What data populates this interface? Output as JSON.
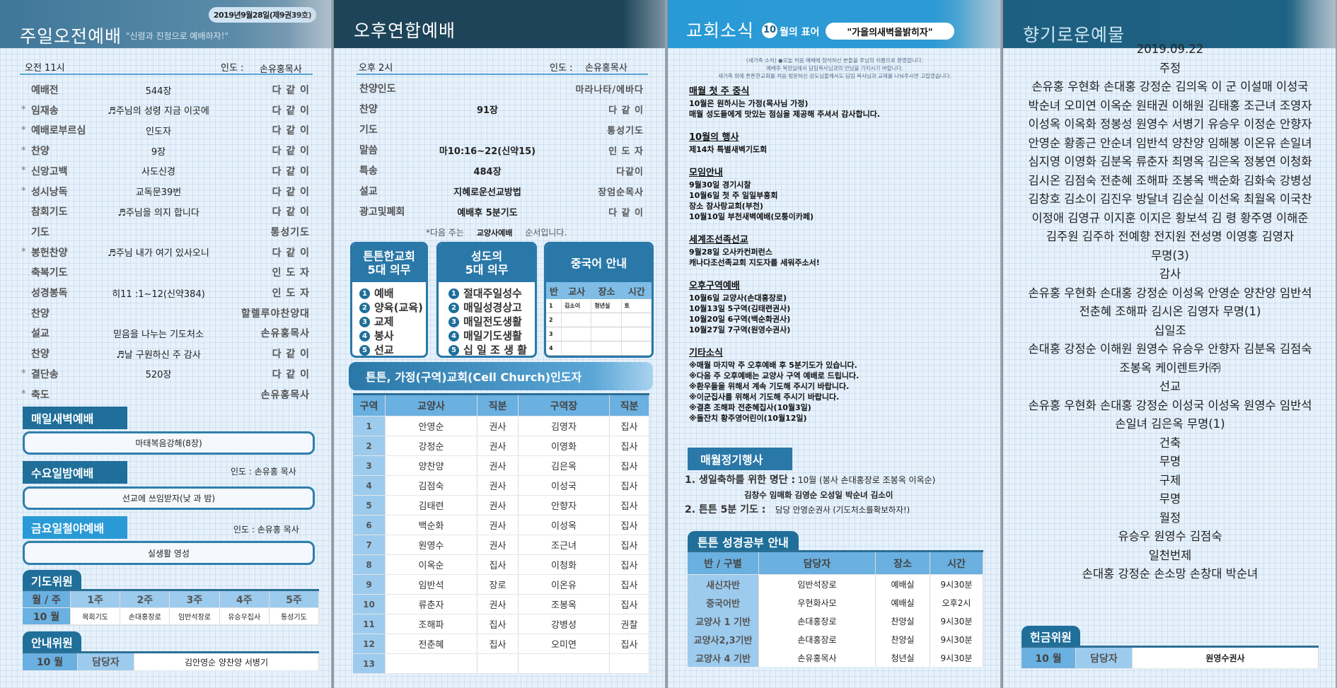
{
  "morning": {
    "date_badge": "2019년9월28일(제9권39호)",
    "title": "주일오전예배",
    "motto": "\"신령과 진정으로 예배하자!\"",
    "time": "오전 11시",
    "leader_label": "인도 :",
    "leader": "손유홍목사",
    "order": [
      {
        "mark": "",
        "label": "예배전",
        "content": "544장",
        "by": "다 같 이"
      },
      {
        "mark": "*",
        "label": "임재송",
        "content": "♬주님의 성령 지금 이곳에",
        "by": "다 같 이"
      },
      {
        "mark": "*",
        "label": "예배로부르심",
        "content": "인도자",
        "by": "다 같 이"
      },
      {
        "mark": "*",
        "label": "찬양",
        "content": "9장",
        "by": "다 같 이"
      },
      {
        "mark": "*",
        "label": "신앙고백",
        "content": "사도신경",
        "by": "다 같 이"
      },
      {
        "mark": "*",
        "label": "성시낭독",
        "content": "교독문39번",
        "by": "다 같 이"
      },
      {
        "mark": "",
        "label": "참회기도",
        "content": "♬주님을 의지 합니다",
        "by": "다 같 이"
      },
      {
        "mark": "",
        "label": "기도",
        "content": "",
        "by": "통성기도"
      },
      {
        "mark": "*",
        "label": "봉헌찬양",
        "content": "♬주님 내가 여기 있사오니",
        "by": "다 같 이"
      },
      {
        "mark": "",
        "label": "축복기도",
        "content": "",
        "by": "인 도 자"
      },
      {
        "mark": "",
        "label": "성경봉독",
        "content": "히11 :1~12(신약384)",
        "by": "인 도 자"
      },
      {
        "mark": "",
        "label": "찬양",
        "content": "",
        "by": "할렐루야찬양대"
      },
      {
        "mark": "",
        "label": "설교",
        "content": "믿음을 나누는 기도처소",
        "by": "손유홍목사"
      },
      {
        "mark": "",
        "label": "찬양",
        "content": "♬날 구원하신 주 감사",
        "by": "다 같 이"
      },
      {
        "mark": "*",
        "label": "결단송",
        "content": "520장",
        "by": "다 같 이"
      },
      {
        "mark": "*",
        "label": "축도",
        "content": "",
        "by": "손유홍목사"
      }
    ],
    "dawn": {
      "tab": "매일새벽예배",
      "content": "마태복음강해(8장)"
    },
    "wednesday": {
      "tab": "수요일밤예배",
      "leader": "인도 : 손유홍 목사",
      "content": "선교에 쓰임받자(낮 과 밤)"
    },
    "friday": {
      "tab": "금요일철야예배",
      "leader": "인도 : 손유홍 목사",
      "content": "실생활 영성"
    },
    "prayer": {
      "tab": "기도위원",
      "header": [
        "월 / 주",
        "1주",
        "2주",
        "3주",
        "4주",
        "5주"
      ],
      "row": [
        "10 월",
        "목회기도",
        "손대홍장로",
        "임반석장로",
        "유승우집사",
        "통성기도"
      ]
    },
    "usher": {
      "tab": "안내위원",
      "month": "10 월",
      "label": "담당자",
      "names": "김안영순 양찬양 서병기"
    }
  },
  "afternoon": {
    "title": "오후연합예배",
    "time": "오후 2시",
    "leader_label": "인도 :",
    "leader": "손유홍목사",
    "order": [
      {
        "label": "찬양인도",
        "content": "",
        "by": "마라나타/에바다"
      },
      {
        "label": "찬양",
        "content": "91장",
        "by": "다 같 이"
      },
      {
        "label": "기도",
        "content": "",
        "by": "통성기도"
      },
      {
        "label": "말씀",
        "content": "마10:16~22(신약15)",
        "by": "인 도 자"
      },
      {
        "label": "특송",
        "content": "484장",
        "by": "다같이"
      },
      {
        "label": "설교",
        "content": "지혜로운선교방법",
        "by": "장엄순목사"
      },
      {
        "label": "광고및폐회",
        "content": "예배후 5분기도",
        "by": "다 같 이"
      }
    ],
    "next_week": [
      "*다음 주는",
      "교양사예배",
      "순서입니다."
    ],
    "church_duties": {
      "title": [
        "튼튼한교회",
        "5대 의무"
      ],
      "items": [
        "예배",
        "양육(교육)",
        "교제",
        "봉사",
        "선교"
      ]
    },
    "saint_duties": {
      "title": [
        "성도의",
        "5대 의무"
      ],
      "items": [
        "절대주일성수",
        "매일성경상고",
        "매일전도생활",
        "매일기도생활",
        "십 일 조 생 활"
      ]
    },
    "chinese": {
      "title": "중국어 안내",
      "header": [
        "반",
        "교사",
        "장소",
        "시간"
      ],
      "rows": [
        [
          "1",
          "김소이",
          "청년실",
          "토"
        ],
        [
          "2",
          "",
          "",
          ""
        ],
        [
          "3",
          "",
          "",
          ""
        ],
        [
          "4",
          "",
          "",
          ""
        ]
      ]
    },
    "cell": {
      "title": "튼튼, 가정(구역)교회(Cell Church)인도자",
      "header": [
        "구역",
        "교양사",
        "직분",
        "구역장",
        "직분"
      ],
      "rows": [
        [
          "1",
          "안영순",
          "권사",
          "김영자",
          "집사"
        ],
        [
          "2",
          "강정순",
          "권사",
          "이영화",
          "집사"
        ],
        [
          "3",
          "양찬양",
          "권사",
          "김은옥",
          "집사"
        ],
        [
          "4",
          "김점숙",
          "권사",
          "이성국",
          "집사"
        ],
        [
          "5",
          "김태련",
          "권사",
          "안향자",
          "집사"
        ],
        [
          "6",
          "백순화",
          "권사",
          "이성옥",
          "집사"
        ],
        [
          "7",
          "원영수",
          "권사",
          "조근녀",
          "집사"
        ],
        [
          "8",
          "이옥순",
          "집사",
          "이청화",
          "집사"
        ],
        [
          "9",
          "임반석",
          "장로",
          "이온유",
          "집사"
        ],
        [
          "10",
          "류춘자",
          "권사",
          "조봉옥",
          "집사"
        ],
        [
          "11",
          "조해파",
          "집사",
          "강병성",
          "권찰"
        ],
        [
          "12",
          "전춘혜",
          "집사",
          "오미연",
          "집사"
        ],
        [
          "13",
          "",
          "",
          "",
          ""
        ]
      ]
    }
  },
  "news": {
    "title": "교회소식",
    "motto_month": "10",
    "motto_label": "월의 표어",
    "motto": "\"가을의새벽을밝히자\"",
    "welcome": [
      "(새가족 소식) ●오늘 처음 예배에 참석하신 분들을 주님의 이름으로 환영합니다.",
      "예배후 목양실에서 담임목사님과의 만남을 가지시기 바랍니다.",
      "새가족 외에 튼튼한교회를 처음 방문하신 성도님들께서도 담임 목사님과 교제를 나눠주시면 고맙겠습니다."
    ],
    "sections": [
      {
        "heading": "매월 첫 주 중식",
        "lines": [
          "10월은 원하시는 가정(목사님 가정)",
          "매월 성도들에게 맛있는 점심을 제공해 주셔서 감사합니다."
        ]
      },
      {
        "heading": "10월의 행사",
        "lines": [
          "제14차 특별새벽기도회"
        ]
      },
      {
        "heading": "모임안내",
        "lines": [
          "9월30일 경기시찰",
          "10월6일 첫 주 일일부흥회",
          "장소 참사랑교회(부천)",
          "10월10일 부천새벽예배(모퉁이카페)"
        ]
      },
      {
        "heading": "세계조선족선교",
        "lines": [
          "9월28일 오사카컨퍼런스",
          "캐나다조선족교회 지도자를 세워주소서!"
        ]
      },
      {
        "heading": "오후구역예배",
        "lines": [
          "10월6일 교양사(손대홍장로)",
          "10월13일 5구역(김태련권사)",
          "10월20일 6구역(백순화권사)",
          "10월27일 7구역(원영수권사)"
        ]
      },
      {
        "heading": "기타소식",
        "lines": [
          "※매월 마지막 주 오후예배 후 5분기도가 있습니다.",
          "※다음 주 오후예배는 교양사 구역 예배로 드립니다.",
          "※환우들을 위해서 계속 기도해 주시기 바랍니다.",
          "※이군집사를 위해서 기도해 주시기 바랍니다.",
          "※결혼 조해파 전춘혜집사(10월3일)",
          "※돌잔치 황주영어린이(10월12일)"
        ]
      }
    ],
    "monthly": {
      "tab": "매월정기행사",
      "item1_label": "1. 생일축하를 위한 명단 :",
      "item1_value": "10월 (봉사 손대홍장로 조봉옥 이옥순)",
      "item1_names": "김창수 임매화 김영순 오성일 박순녀 김소이",
      "item2_label": "2. 튼튼 5분 기도 :",
      "item2_value": "담당 안영순권사 (기도처소를확보하자!)"
    },
    "bible": {
      "tab": "튼튼 성경공부 안내",
      "header": [
        "반 / 구별",
        "담당자",
        "장소",
        "시간"
      ],
      "rows": [
        [
          "새신자반",
          "임반석장로",
          "예배실",
          "9시30분"
        ],
        [
          "중국어반",
          "우현화사모",
          "예배실",
          "오후2시"
        ],
        [
          "교양사 1 기반",
          "손대홍장로",
          "찬양실",
          "9시30분"
        ],
        [
          "교양사2,3기반",
          "손대홍장로",
          "찬양실",
          "9시30분"
        ],
        [
          "교양사 4 기반",
          "손유홍목사",
          "청년실",
          "9시30분"
        ]
      ]
    }
  },
  "offering": {
    "title": "향기로운예물",
    "lines": [
      "2019.09.22",
      "주정",
      "손유홍 우현화 손대홍 강정순 김의옥 이  군 이설매 이성국",
      "박순녀 오미연 이옥순 원태권 이해원 김태홍 조근녀 조영자",
      "이성옥 이옥화 정봉성 원영수 서병기 유승우 이정순 안향자",
      "안영순 황종근 안순녀 임반석 양찬양  임해봉 이온유 손일녀",
      "심지영 이영화 김분옥 류춘자 최명옥 김은옥 정봉연  이청화",
      "김시온 김점숙 전춘혜 조해파 조봉옥 백순화 김화숙 강병성",
      "김창호 김소이 김진우 방달녀 김순실 이선옥 최월옥 이국찬",
      "이정애 김영규 이지훈  이지은 황보석 김  령 황주영 이해준",
      "김주원 김주하 전예향 전지원 전성명  이영홍 김영자",
      "무명(3)",
      "감사",
      "손유홍 우현화 손대홍 강정순 이성옥 안영순 양찬양 임반석",
      "전춘혜 조해파 김시온 김영자 무명(1)",
      "십일조",
      "손대홍 강정순 이해원 원영수 유승우 안향자 김분옥 김점숙",
      "조봉옥 케이렌트카㈜",
      "선교",
      "손유홍 우현화 손대홍 강정순 이성국 이성옥 원영수 임반석",
      "손일녀  김은옥 무명(1)",
      "건축",
      "무명",
      "구제",
      "무명",
      "월정",
      "유승우 원영수 김점숙",
      "일천번제",
      "손대홍 강정순 손소망 손창대 박순녀"
    ],
    "committee": {
      "tab": "헌금위원",
      "month": "10 월",
      "label": "담당자",
      "name": "원영수권사"
    }
  },
  "colors": {
    "dark_tab": "#1f6f9a",
    "light_tab": "#2a9ad6",
    "header_light": "#9ccbee",
    "background": "#e6f1fb"
  }
}
